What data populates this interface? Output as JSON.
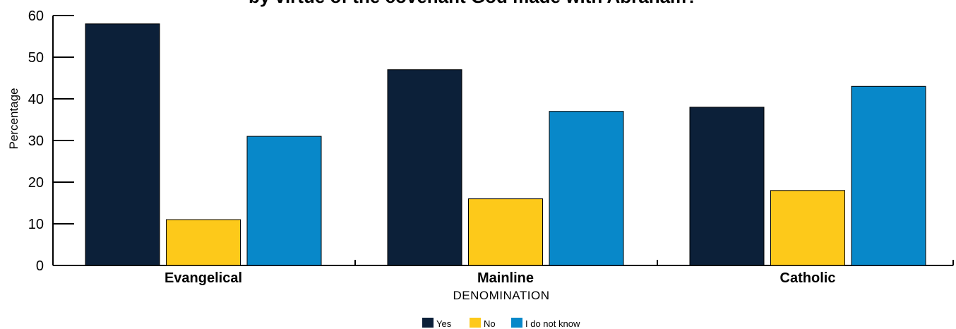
{
  "chart_data": {
    "type": "bar",
    "title": "by virtue of the covenant God made with Abraham?",
    "xlabel": "DENOMINATION",
    "ylabel": "Percentage",
    "categories": [
      "Evangelical",
      "Mainline",
      "Catholic"
    ],
    "series": [
      {
        "name": "Yes",
        "color": "#0c2039",
        "values": [
          58,
          47,
          38
        ]
      },
      {
        "name": "No",
        "color": "#fdc91a",
        "values": [
          11,
          16,
          18
        ]
      },
      {
        "name": "I do not know",
        "color": "#0888c9",
        "values": [
          31,
          37,
          43
        ]
      }
    ],
    "ylim": [
      0,
      60
    ],
    "yticks": [
      0,
      10,
      20,
      30,
      40,
      50,
      60
    ],
    "grid": false,
    "legend_position": "bottom-center"
  }
}
